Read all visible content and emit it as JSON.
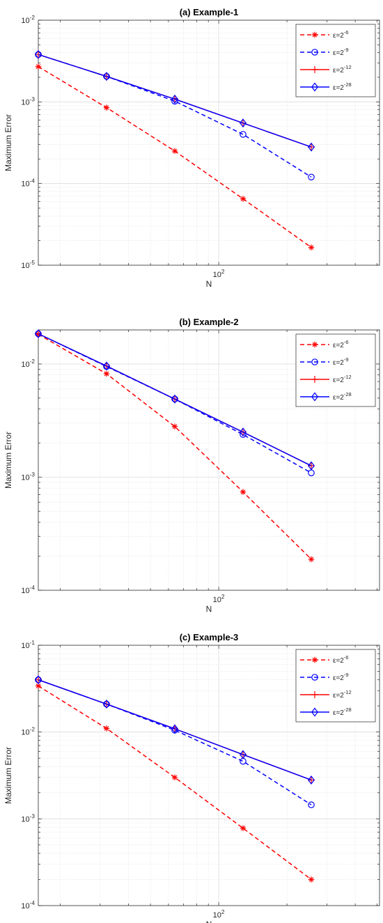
{
  "chart_data": [
    {
      "type": "line",
      "title": "(a) Example-1",
      "xlabel": "N",
      "ylabel": "Maximum Error",
      "xscale": "log",
      "yscale": "log",
      "grid": true,
      "legend": "top-right",
      "xlim": [
        16,
        512
      ],
      "ylim": [
        1e-05,
        0.01
      ],
      "x": [
        16,
        32,
        64,
        128,
        256
      ],
      "xticks": [
        {
          "value": 100,
          "base": "10",
          "exp": "2"
        }
      ],
      "yticks": [
        {
          "value": 1e-05,
          "base": "10",
          "exp": "-5"
        },
        {
          "value": 0.0001,
          "base": "10",
          "exp": "-4"
        },
        {
          "value": 0.001,
          "base": "10",
          "exp": "-3"
        },
        {
          "value": 0.01,
          "base": "10",
          "exp": "-2"
        }
      ],
      "series": [
        {
          "name": "ε=2⁻⁶",
          "label_base": "ε=2",
          "label_exp": "-6",
          "color": "#ff0000",
          "dash": true,
          "marker": "asterisk",
          "values": [
            0.0027,
            0.00085,
            0.00025,
            6.5e-05,
            1.65e-05
          ]
        },
        {
          "name": "ε=2⁻⁹",
          "label_base": "ε=2",
          "label_exp": "-9",
          "color": "#0000ff",
          "dash": true,
          "marker": "circle",
          "values": [
            0.0038,
            0.00205,
            0.00102,
            0.0004,
            0.00012
          ]
        },
        {
          "name": "ε=2⁻¹²",
          "label_base": "ε=2",
          "label_exp": "-12",
          "color": "#ff0000",
          "dash": false,
          "marker": "plus",
          "values": [
            0.0038,
            0.00205,
            0.00108,
            0.00055,
            0.00028
          ]
        },
        {
          "name": "ε=2⁻²⁸",
          "label_base": "ε=2",
          "label_exp": "-28",
          "color": "#0000ff",
          "dash": false,
          "marker": "diamond",
          "values": [
            0.0038,
            0.00205,
            0.00108,
            0.00055,
            0.00028
          ]
        }
      ]
    },
    {
      "type": "line",
      "title": "(b) Example-2",
      "xlabel": "N",
      "ylabel": "Maximum Error",
      "xscale": "log",
      "yscale": "log",
      "grid": true,
      "legend": "top-right",
      "xlim": [
        16,
        512
      ],
      "ylim": [
        0.0001,
        0.02
      ],
      "x": [
        16,
        32,
        64,
        128,
        256
      ],
      "xticks": [
        {
          "value": 100,
          "base": "10",
          "exp": "2"
        }
      ],
      "yticks": [
        {
          "value": 0.0001,
          "base": "10",
          "exp": "-4"
        },
        {
          "value": 0.001,
          "base": "10",
          "exp": "-3"
        },
        {
          "value": 0.01,
          "base": "10",
          "exp": "-2"
        }
      ],
      "series": [
        {
          "name": "ε=2⁻⁶",
          "label_base": "ε=2",
          "label_exp": "-6",
          "color": "#ff0000",
          "dash": true,
          "marker": "asterisk",
          "values": [
            0.0183,
            0.0082,
            0.0028,
            0.00074,
            0.000188
          ]
        },
        {
          "name": "ε=2⁻⁹",
          "label_base": "ε=2",
          "label_exp": "-9",
          "color": "#0000ff",
          "dash": true,
          "marker": "circle",
          "values": [
            0.0185,
            0.0095,
            0.0049,
            0.00238,
            0.00109
          ]
        },
        {
          "name": "ε=2⁻¹²",
          "label_base": "ε=2",
          "label_exp": "-12",
          "color": "#ff0000",
          "dash": false,
          "marker": "plus",
          "values": [
            0.0185,
            0.0096,
            0.0049,
            0.0025,
            0.00126
          ]
        },
        {
          "name": "ε=2⁻²⁸",
          "label_base": "ε=2",
          "label_exp": "-28",
          "color": "#0000ff",
          "dash": false,
          "marker": "diamond",
          "values": [
            0.0185,
            0.0096,
            0.0049,
            0.0025,
            0.00126
          ]
        }
      ]
    },
    {
      "type": "line",
      "title": "(c) Example-3",
      "xlabel": "N",
      "ylabel": "Maximum Error",
      "xscale": "log",
      "yscale": "log",
      "grid": true,
      "legend": "top-right",
      "xlim": [
        16,
        512
      ],
      "ylim": [
        0.0001,
        0.1
      ],
      "x": [
        16,
        32,
        64,
        128,
        256
      ],
      "xticks": [
        {
          "value": 100,
          "base": "10",
          "exp": "2"
        }
      ],
      "yticks": [
        {
          "value": 0.0001,
          "base": "10",
          "exp": "-4"
        },
        {
          "value": 0.001,
          "base": "10",
          "exp": "-3"
        },
        {
          "value": 0.01,
          "base": "10",
          "exp": "-2"
        },
        {
          "value": 0.1,
          "base": "10",
          "exp": "-1"
        }
      ],
      "series": [
        {
          "name": "ε=2⁻⁶",
          "label_base": "ε=2",
          "label_exp": "-6",
          "color": "#ff0000",
          "dash": true,
          "marker": "asterisk",
          "values": [
            0.034,
            0.011,
            0.003,
            0.00078,
            0.0002
          ]
        },
        {
          "name": "ε=2⁻⁹",
          "label_base": "ε=2",
          "label_exp": "-9",
          "color": "#0000ff",
          "dash": true,
          "marker": "circle",
          "values": [
            0.04,
            0.021,
            0.0105,
            0.0046,
            0.00145
          ]
        },
        {
          "name": "ε=2⁻¹²",
          "label_base": "ε=2",
          "label_exp": "-12",
          "color": "#ff0000",
          "dash": false,
          "marker": "plus",
          "values": [
            0.04,
            0.021,
            0.0109,
            0.0055,
            0.0028
          ]
        },
        {
          "name": "ε=2⁻²⁸",
          "label_base": "ε=2",
          "label_exp": "-28",
          "color": "#0000ff",
          "dash": false,
          "marker": "diamond",
          "values": [
            0.04,
            0.021,
            0.0109,
            0.0055,
            0.0028
          ]
        }
      ]
    }
  ]
}
